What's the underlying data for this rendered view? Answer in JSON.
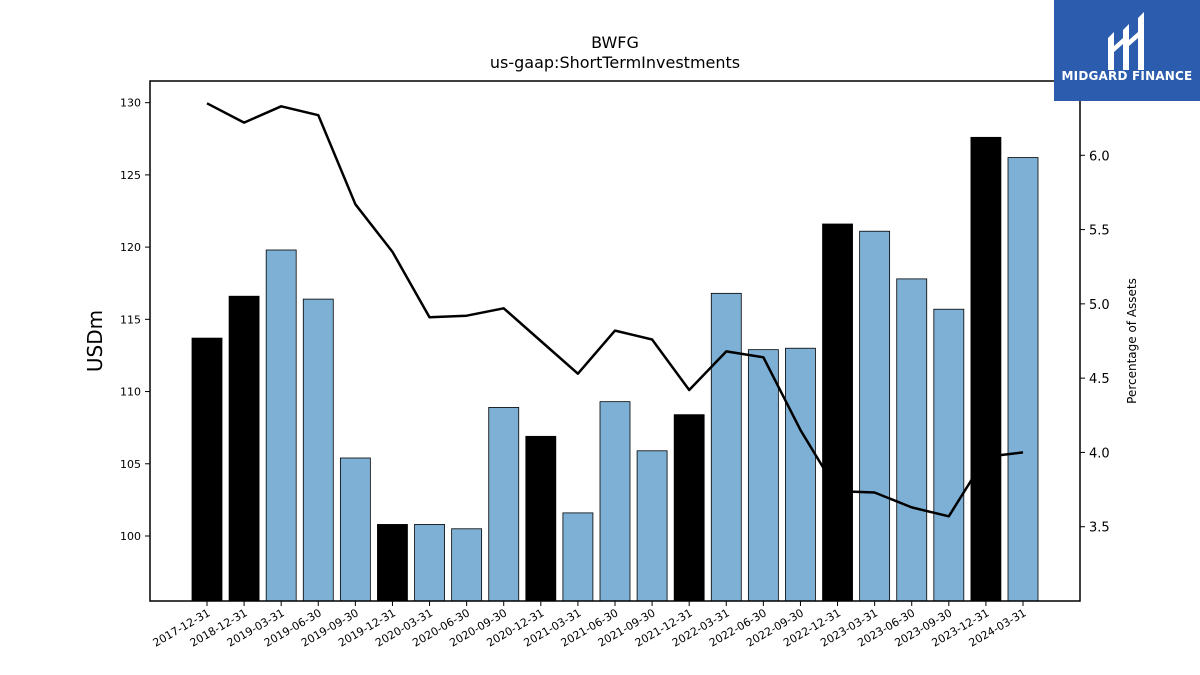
{
  "chart_data": {
    "type": "bar",
    "title": "BWFG",
    "subtitle": "us-gaap:ShortTermInvestments",
    "ylabel": "USDm",
    "y2label": "Percentage of Assets",
    "ylim": [
      95.5,
      131.5
    ],
    "y2lim": [
      3.0,
      6.5
    ],
    "yticks": [
      100,
      105,
      110,
      115,
      120,
      125,
      130
    ],
    "y2ticks": [
      3.5,
      4.0,
      4.5,
      5.0,
      5.5,
      6.0
    ],
    "categories": [
      "2017-12-31",
      "2018-12-31",
      "2019-03-31",
      "2019-06-30",
      "2019-09-30",
      "2019-12-31",
      "2020-03-31",
      "2020-06-30",
      "2020-09-30",
      "2020-12-31",
      "2021-03-31",
      "2021-06-30",
      "2021-09-30",
      "2021-12-31",
      "2022-03-31",
      "2022-06-30",
      "2022-09-30",
      "2022-12-31",
      "2023-03-31",
      "2023-06-30",
      "2023-09-30",
      "2023-12-31",
      "2024-03-31"
    ],
    "series": [
      {
        "kind": "bar",
        "values": [
          113.7,
          116.6,
          119.8,
          116.4,
          105.4,
          100.8,
          100.8,
          100.5,
          108.9,
          106.9,
          101.6,
          109.3,
          105.9,
          108.4,
          116.8,
          112.9,
          113.0,
          121.6,
          121.1,
          117.8,
          115.7,
          127.6,
          126.2
        ],
        "colors": [
          "#000000",
          "#000000",
          "#7eb0d5",
          "#7eb0d5",
          "#7eb0d5",
          "#000000",
          "#7eb0d5",
          "#7eb0d5",
          "#7eb0d5",
          "#000000",
          "#7eb0d5",
          "#7eb0d5",
          "#7eb0d5",
          "#000000",
          "#7eb0d5",
          "#7eb0d5",
          "#7eb0d5",
          "#000000",
          "#7eb0d5",
          "#7eb0d5",
          "#7eb0d5",
          "#000000",
          "#7eb0d5"
        ]
      },
      {
        "kind": "line",
        "axis": "right",
        "color": "#000000",
        "values": [
          6.35,
          6.22,
          6.33,
          6.27,
          5.67,
          5.35,
          4.91,
          4.92,
          4.97,
          4.75,
          4.53,
          4.82,
          4.76,
          4.42,
          4.68,
          4.64,
          4.15,
          3.74,
          3.73,
          3.63,
          3.57,
          3.97,
          4.0
        ]
      }
    ]
  },
  "logo": {
    "text": "MIDGARD FINANCE"
  }
}
